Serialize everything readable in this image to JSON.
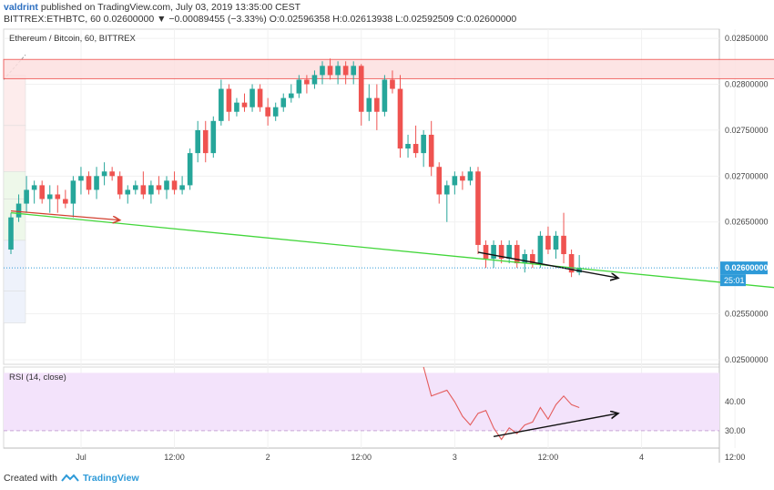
{
  "header": {
    "author": "valdrint",
    "published_text": "published on TradingView.com, July 03, 2019 13:35:00 CEST",
    "symbol_line": "BITTREX:ETHBTC, 60  0.02600000 ▼ −0.00089455 (−3.33%)  O:0.02596358  H:0.02613938  L:0.02592509  C:0.02600000",
    "chart_title": "Ethereum / Bitcoin, 60, BITTREX"
  },
  "footer": {
    "created_with": "Created with",
    "brand": "TradingView"
  },
  "colors": {
    "up": "#26a69a",
    "down": "#ef5350",
    "zone_fill": "#fde0e0",
    "zone_stroke": "#ef5350",
    "trend_green": "#42d63a",
    "trend_red": "#d2402f",
    "rsi_line": "#e45c5c",
    "rsi_fill": "#f3e3fb",
    "price_tag": "#2e9ad8"
  },
  "chart_data": {
    "type": "candlestick",
    "symbol": "BITTREX:ETHBTC",
    "interval": "60",
    "last_price": "0.02600000",
    "countdown": "25:01",
    "ylim": [
      0.02495,
      0.0286
    ],
    "y_ticks": [
      "0.02850000",
      "0.02800000",
      "0.02750000",
      "0.02700000",
      "0.02650000",
      "0.02550000",
      "0.02500000"
    ],
    "x_ticks": [
      {
        "t": 9,
        "label": "Jul"
      },
      {
        "t": 21,
        "label": "12:00"
      },
      {
        "t": 33,
        "label": "2"
      },
      {
        "t": 45,
        "label": "12:00"
      },
      {
        "t": 57,
        "label": "3"
      },
      {
        "t": 69,
        "label": "12:00"
      },
      {
        "t": 81,
        "label": "4"
      },
      {
        "t": 93,
        "label": "12:00"
      }
    ],
    "candles": [
      [
        0.0262,
        0.0266,
        0.02615,
        0.02655
      ],
      [
        0.02655,
        0.0268,
        0.0265,
        0.0267
      ],
      [
        0.0267,
        0.027,
        0.0266,
        0.02685
      ],
      [
        0.02685,
        0.02695,
        0.0267,
        0.0269
      ],
      [
        0.0269,
        0.02695,
        0.0267,
        0.02675
      ],
      [
        0.02675,
        0.0269,
        0.0266,
        0.0268
      ],
      [
        0.0268,
        0.0269,
        0.0266,
        0.02675
      ],
      [
        0.02675,
        0.02685,
        0.02665,
        0.0267
      ],
      [
        0.0267,
        0.027,
        0.02655,
        0.02695
      ],
      [
        0.02695,
        0.0271,
        0.0268,
        0.027
      ],
      [
        0.027,
        0.02705,
        0.0268,
        0.02685
      ],
      [
        0.02685,
        0.0271,
        0.02675,
        0.027
      ],
      [
        0.027,
        0.02715,
        0.0269,
        0.02705
      ],
      [
        0.02705,
        0.0271,
        0.02695,
        0.027
      ],
      [
        0.027,
        0.02705,
        0.02675,
        0.0268
      ],
      [
        0.0268,
        0.0269,
        0.0267,
        0.02685
      ],
      [
        0.02685,
        0.02695,
        0.0268,
        0.0269
      ],
      [
        0.0269,
        0.02705,
        0.02675,
        0.0268
      ],
      [
        0.0268,
        0.02695,
        0.0267,
        0.0269
      ],
      [
        0.0269,
        0.027,
        0.0268,
        0.02685
      ],
      [
        0.02685,
        0.027,
        0.02675,
        0.02695
      ],
      [
        0.02695,
        0.02705,
        0.0268,
        0.02685
      ],
      [
        0.02685,
        0.027,
        0.0268,
        0.0269
      ],
      [
        0.0269,
        0.0273,
        0.02685,
        0.02725
      ],
      [
        0.02725,
        0.0276,
        0.02715,
        0.0275
      ],
      [
        0.0275,
        0.0276,
        0.02715,
        0.02725
      ],
      [
        0.02725,
        0.02765,
        0.0272,
        0.0276
      ],
      [
        0.0276,
        0.02805,
        0.02755,
        0.02795
      ],
      [
        0.02795,
        0.028,
        0.0276,
        0.0277
      ],
      [
        0.0277,
        0.02785,
        0.02765,
        0.0278
      ],
      [
        0.0278,
        0.0279,
        0.0277,
        0.02775
      ],
      [
        0.02775,
        0.028,
        0.0277,
        0.02795
      ],
      [
        0.02795,
        0.028,
        0.0277,
        0.02775
      ],
      [
        0.02775,
        0.02785,
        0.02755,
        0.02765
      ],
      [
        0.02765,
        0.0278,
        0.0276,
        0.02775
      ],
      [
        0.02775,
        0.0279,
        0.0277,
        0.02785
      ],
      [
        0.02785,
        0.028,
        0.0278,
        0.0279
      ],
      [
        0.0279,
        0.0281,
        0.02785,
        0.02805
      ],
      [
        0.02805,
        0.0281,
        0.0279,
        0.028
      ],
      [
        0.028,
        0.02815,
        0.02795,
        0.0281
      ],
      [
        0.0281,
        0.02825,
        0.028,
        0.0282
      ],
      [
        0.0282,
        0.02828,
        0.02805,
        0.0281
      ],
      [
        0.0281,
        0.02825,
        0.028,
        0.0282
      ],
      [
        0.0282,
        0.02825,
        0.028,
        0.0281
      ],
      [
        0.0281,
        0.02825,
        0.028,
        0.0282
      ],
      [
        0.0282,
        0.02822,
        0.02755,
        0.0277
      ],
      [
        0.0277,
        0.028,
        0.0276,
        0.02785
      ],
      [
        0.02785,
        0.028,
        0.0275,
        0.0277
      ],
      [
        0.0277,
        0.0281,
        0.02765,
        0.02805
      ],
      [
        0.02805,
        0.02815,
        0.0279,
        0.02795
      ],
      [
        0.02795,
        0.0281,
        0.0272,
        0.0273
      ],
      [
        0.0273,
        0.02745,
        0.0272,
        0.02735
      ],
      [
        0.02735,
        0.02755,
        0.0272,
        0.02725
      ],
      [
        0.02725,
        0.0275,
        0.0271,
        0.02745
      ],
      [
        0.02745,
        0.0276,
        0.027,
        0.0271
      ],
      [
        0.0271,
        0.02715,
        0.0267,
        0.0268
      ],
      [
        0.0268,
        0.02695,
        0.0265,
        0.0269
      ],
      [
        0.0269,
        0.02705,
        0.0268,
        0.027
      ],
      [
        0.027,
        0.02705,
        0.02685,
        0.02695
      ],
      [
        0.02695,
        0.0271,
        0.0269,
        0.02705
      ],
      [
        0.02705,
        0.0271,
        0.02615,
        0.02625
      ],
      [
        0.02625,
        0.0263,
        0.026,
        0.0261
      ],
      [
        0.0261,
        0.0263,
        0.026,
        0.02625
      ],
      [
        0.02625,
        0.0263,
        0.02605,
        0.0261
      ],
      [
        0.0261,
        0.0263,
        0.02605,
        0.02625
      ],
      [
        0.02625,
        0.0263,
        0.026,
        0.02605
      ],
      [
        0.02605,
        0.0262,
        0.02595,
        0.02615
      ],
      [
        0.02615,
        0.0262,
        0.026,
        0.02605
      ],
      [
        0.02605,
        0.0264,
        0.026,
        0.02635
      ],
      [
        0.02635,
        0.02645,
        0.02615,
        0.0262
      ],
      [
        0.0262,
        0.0264,
        0.0261,
        0.02635
      ],
      [
        0.02635,
        0.0266,
        0.02605,
        0.02615
      ],
      [
        0.02615,
        0.0262,
        0.0259,
        0.02595
      ],
      [
        0.02595,
        0.02614,
        0.02592,
        0.026
      ]
    ],
    "resistance_zone": {
      "t0": 0,
      "t1": 99,
      "y_low": 0.02806,
      "y_high": 0.02827
    },
    "trendlines": [
      {
        "name": "green",
        "t0": 0,
        "v0": 0.0266,
        "t1": 106,
        "v1": 0.02572
      },
      {
        "name": "red",
        "t0": 0,
        "v0": 0.02662,
        "t1": 14,
        "v1": 0.02652
      },
      {
        "name": "price-div",
        "t0": 60,
        "v0": 0.02617,
        "t1": 78,
        "v1": 0.02589
      }
    ],
    "rsi": {
      "label": "RSI (14, close)",
      "ylim": [
        24,
        52
      ],
      "y_ticks": [
        "40.00",
        "30.00"
      ],
      "band": [
        30,
        50
      ],
      "points": [
        [
          53,
          52
        ],
        [
          54,
          42
        ],
        [
          55,
          43
        ],
        [
          56,
          44
        ],
        [
          57,
          40
        ],
        [
          58,
          35
        ],
        [
          59,
          32
        ],
        [
          60,
          36
        ],
        [
          61,
          37
        ],
        [
          62,
          31
        ],
        [
          63,
          27
        ],
        [
          64,
          31
        ],
        [
          65,
          29
        ],
        [
          66,
          32
        ],
        [
          67,
          33
        ],
        [
          68,
          38
        ],
        [
          69,
          34
        ],
        [
          70,
          39
        ],
        [
          71,
          42
        ],
        [
          72,
          39
        ],
        [
          73,
          38
        ]
      ],
      "div_line": {
        "t0": 62,
        "v0": 28,
        "t1": 78,
        "v1": 36
      }
    }
  }
}
